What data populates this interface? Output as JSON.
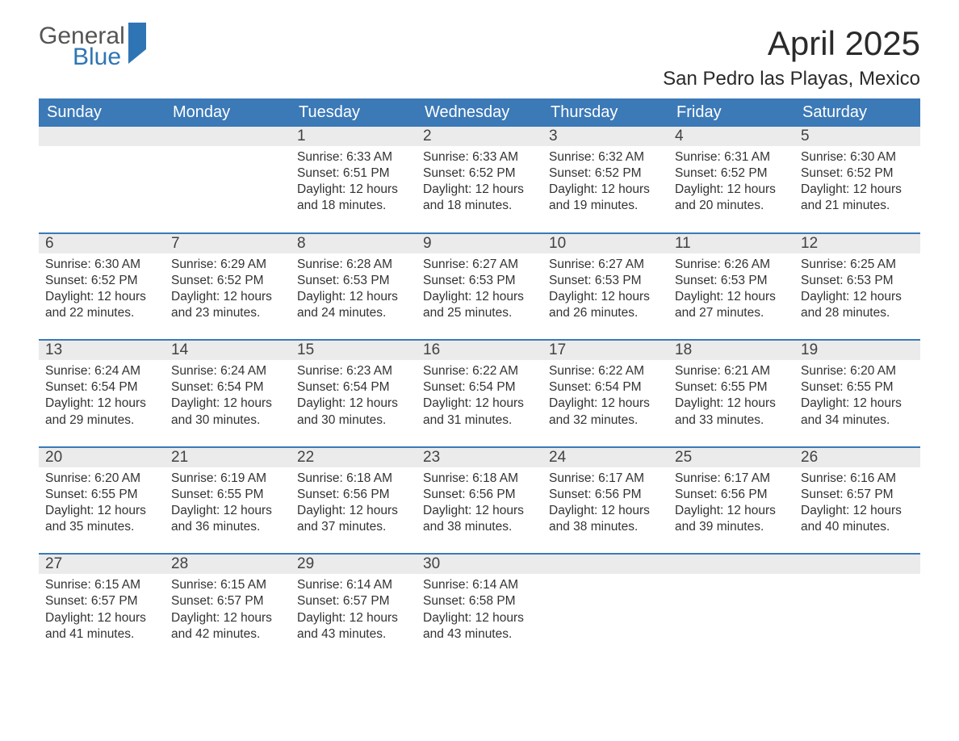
{
  "brand": {
    "word1": "General",
    "word2": "Blue",
    "accent_color": "#2f75b5"
  },
  "title": "April 2025",
  "location": "San Pedro las Playas, Mexico",
  "colors": {
    "header_bg": "#3b79b7",
    "header_text": "#ffffff",
    "daynum_bg": "#ebebeb",
    "text": "#333333",
    "rule": "#3b79b7",
    "background": "#ffffff"
  },
  "day_labels": [
    "Sunday",
    "Monday",
    "Tuesday",
    "Wednesday",
    "Thursday",
    "Friday",
    "Saturday"
  ],
  "weeks": [
    [
      null,
      null,
      {
        "n": "1",
        "sr": "Sunrise: 6:33 AM",
        "ss": "Sunset: 6:51 PM",
        "d1": "Daylight: 12 hours",
        "d2": "and 18 minutes."
      },
      {
        "n": "2",
        "sr": "Sunrise: 6:33 AM",
        "ss": "Sunset: 6:52 PM",
        "d1": "Daylight: 12 hours",
        "d2": "and 18 minutes."
      },
      {
        "n": "3",
        "sr": "Sunrise: 6:32 AM",
        "ss": "Sunset: 6:52 PM",
        "d1": "Daylight: 12 hours",
        "d2": "and 19 minutes."
      },
      {
        "n": "4",
        "sr": "Sunrise: 6:31 AM",
        "ss": "Sunset: 6:52 PM",
        "d1": "Daylight: 12 hours",
        "d2": "and 20 minutes."
      },
      {
        "n": "5",
        "sr": "Sunrise: 6:30 AM",
        "ss": "Sunset: 6:52 PM",
        "d1": "Daylight: 12 hours",
        "d2": "and 21 minutes."
      }
    ],
    [
      {
        "n": "6",
        "sr": "Sunrise: 6:30 AM",
        "ss": "Sunset: 6:52 PM",
        "d1": "Daylight: 12 hours",
        "d2": "and 22 minutes."
      },
      {
        "n": "7",
        "sr": "Sunrise: 6:29 AM",
        "ss": "Sunset: 6:52 PM",
        "d1": "Daylight: 12 hours",
        "d2": "and 23 minutes."
      },
      {
        "n": "8",
        "sr": "Sunrise: 6:28 AM",
        "ss": "Sunset: 6:53 PM",
        "d1": "Daylight: 12 hours",
        "d2": "and 24 minutes."
      },
      {
        "n": "9",
        "sr": "Sunrise: 6:27 AM",
        "ss": "Sunset: 6:53 PM",
        "d1": "Daylight: 12 hours",
        "d2": "and 25 minutes."
      },
      {
        "n": "10",
        "sr": "Sunrise: 6:27 AM",
        "ss": "Sunset: 6:53 PM",
        "d1": "Daylight: 12 hours",
        "d2": "and 26 minutes."
      },
      {
        "n": "11",
        "sr": "Sunrise: 6:26 AM",
        "ss": "Sunset: 6:53 PM",
        "d1": "Daylight: 12 hours",
        "d2": "and 27 minutes."
      },
      {
        "n": "12",
        "sr": "Sunrise: 6:25 AM",
        "ss": "Sunset: 6:53 PM",
        "d1": "Daylight: 12 hours",
        "d2": "and 28 minutes."
      }
    ],
    [
      {
        "n": "13",
        "sr": "Sunrise: 6:24 AM",
        "ss": "Sunset: 6:54 PM",
        "d1": "Daylight: 12 hours",
        "d2": "and 29 minutes."
      },
      {
        "n": "14",
        "sr": "Sunrise: 6:24 AM",
        "ss": "Sunset: 6:54 PM",
        "d1": "Daylight: 12 hours",
        "d2": "and 30 minutes."
      },
      {
        "n": "15",
        "sr": "Sunrise: 6:23 AM",
        "ss": "Sunset: 6:54 PM",
        "d1": "Daylight: 12 hours",
        "d2": "and 30 minutes."
      },
      {
        "n": "16",
        "sr": "Sunrise: 6:22 AM",
        "ss": "Sunset: 6:54 PM",
        "d1": "Daylight: 12 hours",
        "d2": "and 31 minutes."
      },
      {
        "n": "17",
        "sr": "Sunrise: 6:22 AM",
        "ss": "Sunset: 6:54 PM",
        "d1": "Daylight: 12 hours",
        "d2": "and 32 minutes."
      },
      {
        "n": "18",
        "sr": "Sunrise: 6:21 AM",
        "ss": "Sunset: 6:55 PM",
        "d1": "Daylight: 12 hours",
        "d2": "and 33 minutes."
      },
      {
        "n": "19",
        "sr": "Sunrise: 6:20 AM",
        "ss": "Sunset: 6:55 PM",
        "d1": "Daylight: 12 hours",
        "d2": "and 34 minutes."
      }
    ],
    [
      {
        "n": "20",
        "sr": "Sunrise: 6:20 AM",
        "ss": "Sunset: 6:55 PM",
        "d1": "Daylight: 12 hours",
        "d2": "and 35 minutes."
      },
      {
        "n": "21",
        "sr": "Sunrise: 6:19 AM",
        "ss": "Sunset: 6:55 PM",
        "d1": "Daylight: 12 hours",
        "d2": "and 36 minutes."
      },
      {
        "n": "22",
        "sr": "Sunrise: 6:18 AM",
        "ss": "Sunset: 6:56 PM",
        "d1": "Daylight: 12 hours",
        "d2": "and 37 minutes."
      },
      {
        "n": "23",
        "sr": "Sunrise: 6:18 AM",
        "ss": "Sunset: 6:56 PM",
        "d1": "Daylight: 12 hours",
        "d2": "and 38 minutes."
      },
      {
        "n": "24",
        "sr": "Sunrise: 6:17 AM",
        "ss": "Sunset: 6:56 PM",
        "d1": "Daylight: 12 hours",
        "d2": "and 38 minutes."
      },
      {
        "n": "25",
        "sr": "Sunrise: 6:17 AM",
        "ss": "Sunset: 6:56 PM",
        "d1": "Daylight: 12 hours",
        "d2": "and 39 minutes."
      },
      {
        "n": "26",
        "sr": "Sunrise: 6:16 AM",
        "ss": "Sunset: 6:57 PM",
        "d1": "Daylight: 12 hours",
        "d2": "and 40 minutes."
      }
    ],
    [
      {
        "n": "27",
        "sr": "Sunrise: 6:15 AM",
        "ss": "Sunset: 6:57 PM",
        "d1": "Daylight: 12 hours",
        "d2": "and 41 minutes."
      },
      {
        "n": "28",
        "sr": "Sunrise: 6:15 AM",
        "ss": "Sunset: 6:57 PM",
        "d1": "Daylight: 12 hours",
        "d2": "and 42 minutes."
      },
      {
        "n": "29",
        "sr": "Sunrise: 6:14 AM",
        "ss": "Sunset: 6:57 PM",
        "d1": "Daylight: 12 hours",
        "d2": "and 43 minutes."
      },
      {
        "n": "30",
        "sr": "Sunrise: 6:14 AM",
        "ss": "Sunset: 6:58 PM",
        "d1": "Daylight: 12 hours",
        "d2": "and 43 minutes."
      },
      null,
      null,
      null
    ]
  ]
}
